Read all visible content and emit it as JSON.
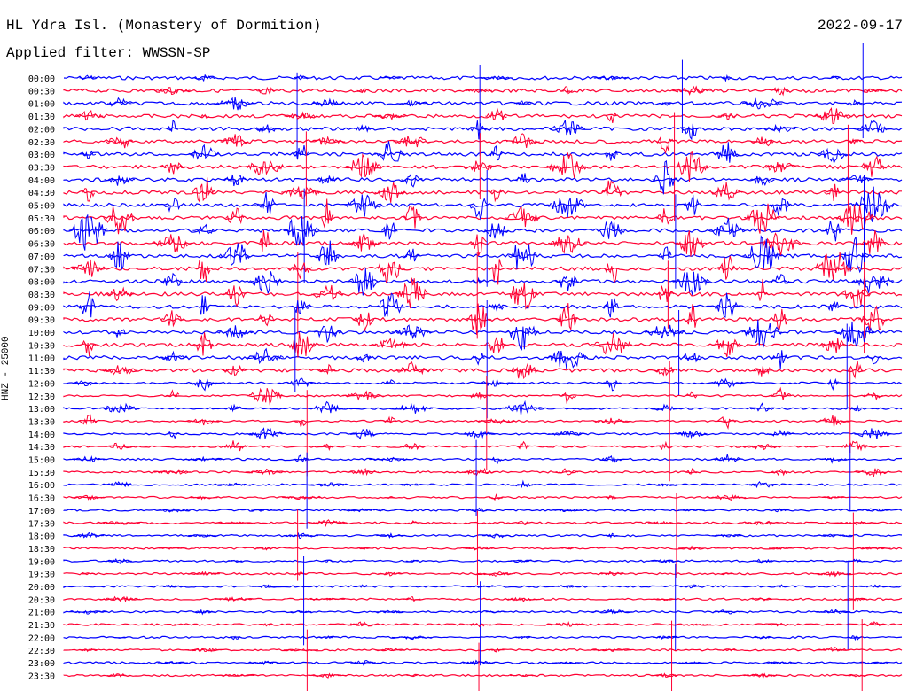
{
  "header": {
    "title": "HL Ydra Isl. (Monastery of Dormition)",
    "date": "2022-09-17",
    "filter": "Applied filter: WWSSN-SP"
  },
  "axis": {
    "ylabel": "HNZ - 25000"
  },
  "colors": {
    "even_row": "#0000ff",
    "odd_row": "#ff0033"
  },
  "chart_data": {
    "type": "line",
    "title": "HL Ydra Isl. (Monastery of Dormition)",
    "subtitle": "Applied filter: WWSSN-SP",
    "xlabel": "",
    "ylabel": "HNZ - 25000",
    "rows": [
      "00:00",
      "00:30",
      "01:00",
      "01:30",
      "02:00",
      "02:30",
      "03:00",
      "03:30",
      "04:00",
      "04:30",
      "05:00",
      "05:30",
      "06:00",
      "06:30",
      "07:00",
      "07:30",
      "08:00",
      "08:30",
      "09:00",
      "09:30",
      "10:00",
      "10:30",
      "11:00",
      "11:30",
      "12:00",
      "12:30",
      "13:00",
      "13:30",
      "14:00",
      "14:30",
      "15:00",
      "15:30",
      "16:00",
      "16:30",
      "17:00",
      "17:30",
      "18:00",
      "18:30",
      "19:00",
      "19:30",
      "20:00",
      "20:30",
      "21:00",
      "21:30",
      "22:00",
      "22:30",
      "23:00",
      "23:30"
    ],
    "grid": false,
    "legend": "none"
  }
}
